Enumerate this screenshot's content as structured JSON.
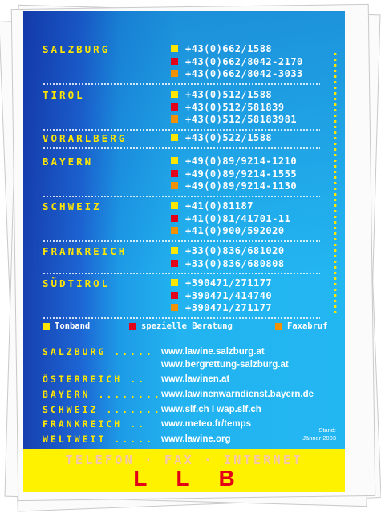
{
  "colors": {
    "yellow": "#ffe600",
    "red": "#e3001b",
    "orange": "#f29100",
    "blue": "#1d9be6",
    "footer_yellow": "#fff200",
    "llb_red": "#e30016"
  },
  "regions": [
    {
      "name": "SALZBURG",
      "numbers": [
        {
          "type": "yellow",
          "value": "+43(0)662/1588"
        },
        {
          "type": "red",
          "value": "+43(0)662/8042-2170"
        },
        {
          "type": "orange",
          "value": "+43(0)662/8042-3033"
        }
      ]
    },
    {
      "name": "TIROL",
      "numbers": [
        {
          "type": "yellow",
          "value": "+43(0)512/1588"
        },
        {
          "type": "red",
          "value": "+43(0)512/581839"
        },
        {
          "type": "orange",
          "value": "+43(0)512/58183981"
        }
      ]
    },
    {
      "name": "VORARLBERG",
      "numbers": [
        {
          "type": "yellow",
          "value": "+43(0)522/1588"
        }
      ]
    },
    {
      "name": "BAYERN",
      "numbers": [
        {
          "type": "yellow",
          "value": "+49(0)89/9214-1210"
        },
        {
          "type": "red",
          "value": "+49(0)89/9214-1555"
        },
        {
          "type": "orange",
          "value": "+49(0)89/9214-1130"
        }
      ]
    },
    {
      "name": "SCHWEIZ",
      "numbers": [
        {
          "type": "yellow",
          "value": "+41(0)81187"
        },
        {
          "type": "red",
          "value": "+41(0)81/41701-11"
        },
        {
          "type": "orange",
          "value": "+41(0)900/592020"
        }
      ]
    },
    {
      "name": "FRANKREICH",
      "numbers": [
        {
          "type": "yellow",
          "value": "+33(0)836/681020"
        },
        {
          "type": "red",
          "value": "+33(0)836/680808"
        }
      ]
    },
    {
      "name": "SÜDTIROL",
      "numbers": [
        {
          "type": "yellow",
          "value": "+390471/271177"
        },
        {
          "type": "red",
          "value": "+390471/414740"
        },
        {
          "type": "orange",
          "value": "+390471/271177"
        }
      ]
    }
  ],
  "legend": [
    {
      "type": "yellow",
      "label": "Tonband"
    },
    {
      "type": "red",
      "label": "spezielle Beratung"
    },
    {
      "type": "orange",
      "label": "Faxabruf"
    }
  ],
  "websites": [
    {
      "label": "SALZBURG .....",
      "url": "www.lawine.salzburg.at"
    },
    {
      "label": "",
      "url": "www.bergrettung-salzburg.at"
    },
    {
      "label": "ÖSTERREICH ..",
      "url": "www.lawinen.at"
    },
    {
      "label": "BAYERN ........",
      "url": "www.lawinenwarndienst.bayern.de"
    },
    {
      "label": "SCHWEIZ .......",
      "url": "www.slf.ch I wap.slf.ch"
    },
    {
      "label": "FRANKREICH ..",
      "url": "www.meteo.fr/temps"
    },
    {
      "label": "WELTWEIT .....",
      "url": "www.lawine.org"
    }
  ],
  "stand": {
    "line1": "Stand:",
    "line2": "Jänner 2003"
  },
  "footer": {
    "tagline": "TELEFON · FAX · INTERNET",
    "logo": "LLB"
  }
}
